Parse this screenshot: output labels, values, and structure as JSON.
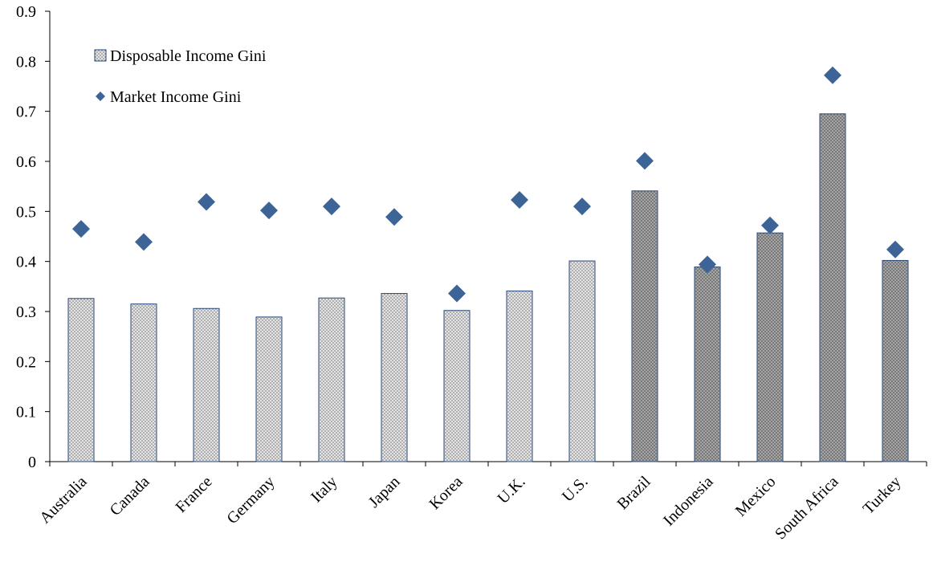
{
  "chart_data": {
    "type": "bar",
    "title": "",
    "xlabel": "",
    "ylabel": "",
    "ylim": [
      0,
      0.9
    ],
    "yticks": [
      "0",
      "0.1",
      "0.2",
      "0.3",
      "0.4",
      "0.5",
      "0.6",
      "0.7",
      "0.8",
      "0.9"
    ],
    "grid": false,
    "legend_position": "top-left",
    "categories": [
      "Australia",
      "Canada",
      "France",
      "Germany",
      "Italy",
      "Japan",
      "Korea",
      "U.K.",
      "U.S.",
      "Brazil",
      "Indonesia",
      "Mexico",
      "South Africa",
      "Turkey"
    ],
    "series": [
      {
        "name": "Disposable Income Gini",
        "kind": "bar",
        "values": [
          0.326,
          0.315,
          0.306,
          0.289,
          0.327,
          0.336,
          0.302,
          0.341,
          0.401,
          0.541,
          0.389,
          0.457,
          0.695,
          0.402
        ],
        "fill_light": "#e3e3e3",
        "fill_dark": "#9a9a9a",
        "dark_from_category": "Brazil"
      },
      {
        "name": "Market Income Gini",
        "kind": "marker",
        "marker": "diamond",
        "color": "#3c6497",
        "values": [
          0.465,
          0.439,
          0.519,
          0.502,
          0.51,
          0.489,
          0.336,
          0.523,
          0.51,
          0.601,
          0.394,
          0.472,
          0.772,
          0.424
        ]
      }
    ]
  }
}
